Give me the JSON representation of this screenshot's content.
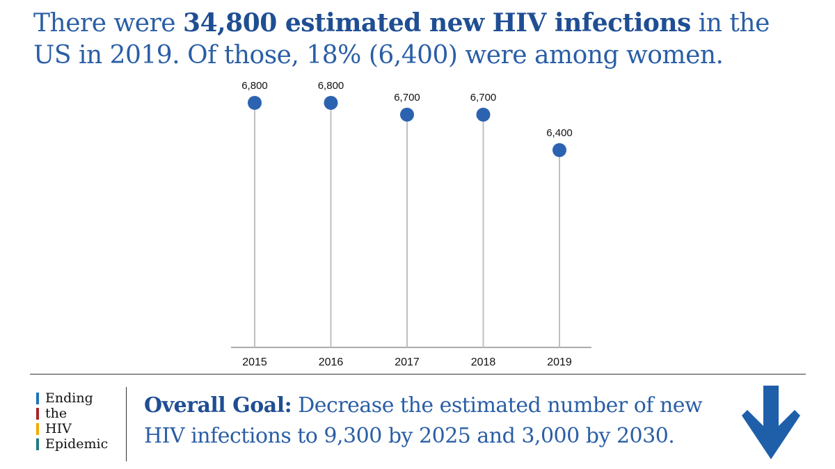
{
  "headline": {
    "part1": "There were ",
    "bold": "34,800 estimated new HIV infections",
    "part2": " in the US  in 2019. Of those, 18% (6,400) were among women."
  },
  "chart_data": {
    "type": "lollipop",
    "title": "",
    "categories": [
      "2015",
      "2016",
      "2017",
      "2018",
      "2019"
    ],
    "values": [
      6800,
      6800,
      6700,
      6700,
      6400
    ],
    "labels": [
      "6,800",
      "6,800",
      "6,700",
      "6,700",
      "6,400"
    ],
    "xlabel": "",
    "ylabel": "",
    "ylim": [
      0,
      6800
    ],
    "grid": false,
    "colors": {
      "marker": "#2c63b0",
      "stem": "#bfbfbf",
      "axis": "#555555"
    }
  },
  "logo": {
    "lines": [
      "Ending",
      "the",
      "HIV",
      "Epidemic"
    ],
    "colors": [
      "#1f73b7",
      "#a4262c",
      "#f2a900",
      "#1f7a83"
    ]
  },
  "goal": {
    "label": "Overall Goal:",
    "text": " Decrease the estimated number of new HIV infections to 9,300 by 2025 and 3,000 by 2030."
  },
  "icons": {
    "goal_arrow": "down-arrow-icon",
    "arrow_color": "#1f5faa"
  }
}
